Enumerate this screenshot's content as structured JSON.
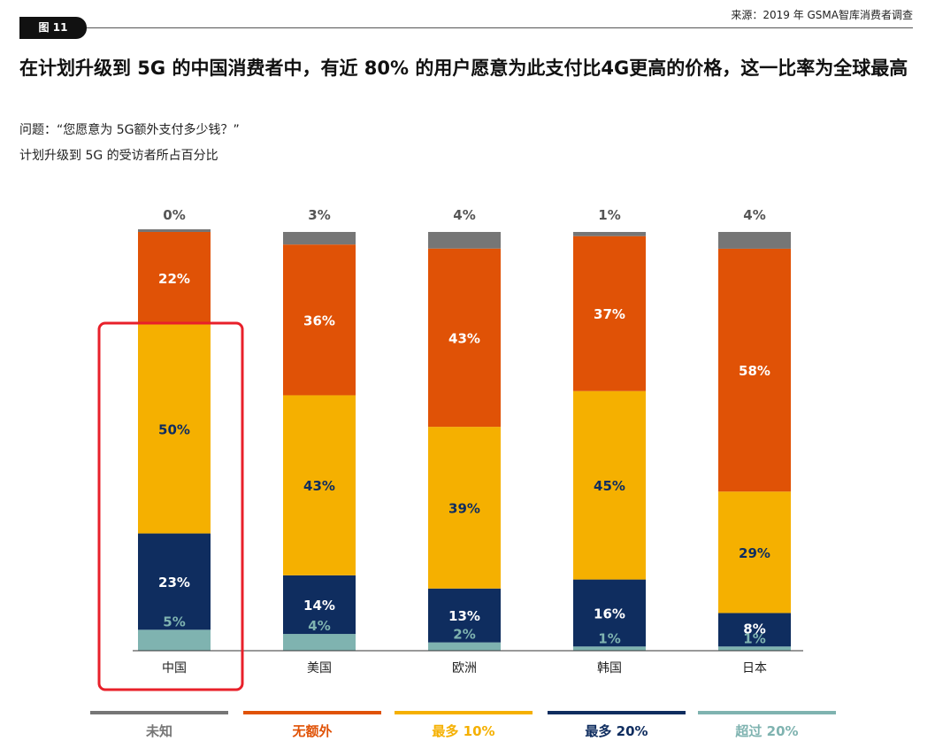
{
  "header": {
    "figure_tag": "图 11",
    "source": "来源：2019 年 GSMA智库消费者调查"
  },
  "title": "在计划升级到 5G 的中国消费者中，有近 80% 的用户愿意为此支付比4G更高的价格，这一比率为全球最高",
  "subtitle_question": "问题：“您愿意为 5G额外支付多少钱？”",
  "subtitle_basis": "计划升级到 5G 的受访者所占百分比",
  "colors": {
    "unknown": "#767676",
    "no_extra": "#E05206",
    "up_to_10": "#F5B000",
    "up_to_20": "#0F2D5F",
    "over_20": "#7FB3B0",
    "highlight": "#E8202A"
  },
  "chart_data": {
    "type": "bar",
    "stacked": true,
    "unit": "%",
    "categories": [
      "中国",
      "美国",
      "欧洲",
      "韩国",
      "日本"
    ],
    "series": [
      {
        "name": "超过 20%",
        "color": "#7FB3B0",
        "label_color": "#7FB3B0",
        "values": [
          5,
          4,
          2,
          1,
          1
        ]
      },
      {
        "name": "最多 20%",
        "color": "#0F2D5F",
        "label_color": "#ffffff",
        "values": [
          23,
          14,
          13,
          16,
          8
        ]
      },
      {
        "name": "最多 10%",
        "color": "#F5B000",
        "label_color": "#0F2D5F",
        "values": [
          50,
          43,
          39,
          45,
          29
        ]
      },
      {
        "name": "无额外",
        "color": "#E05206",
        "label_color": "#ffffff",
        "values": [
          22,
          36,
          43,
          37,
          58
        ]
      },
      {
        "name": "未知",
        "color": "#767676",
        "label_color": "#555555",
        "values": [
          0,
          3,
          4,
          1,
          4
        ]
      }
    ],
    "top_labels": [
      "0%",
      "3%",
      "4%",
      "1%",
      "4%"
    ],
    "segment_labels": [
      [
        "5%",
        "23%",
        "50%",
        "22%"
      ],
      [
        "4%",
        "14%",
        "43%",
        "36%"
      ],
      [
        "2%",
        "13%",
        "39%",
        "43%"
      ],
      [
        "1%",
        "16%",
        "45%",
        "37%"
      ],
      [
        "1%",
        "8%",
        "29%",
        "58%"
      ]
    ],
    "highlighted_category": "中国",
    "legend": [
      {
        "label": "未知",
        "color": "#767676"
      },
      {
        "label": "无额外",
        "color": "#E05206"
      },
      {
        "label": "最多 10%",
        "color": "#F5B000"
      },
      {
        "label": "最多 20%",
        "color": "#0F2D5F"
      },
      {
        "label": "超过 20%",
        "color": "#7FB3B0"
      }
    ],
    "legend_position": "bottom",
    "grid": false
  }
}
